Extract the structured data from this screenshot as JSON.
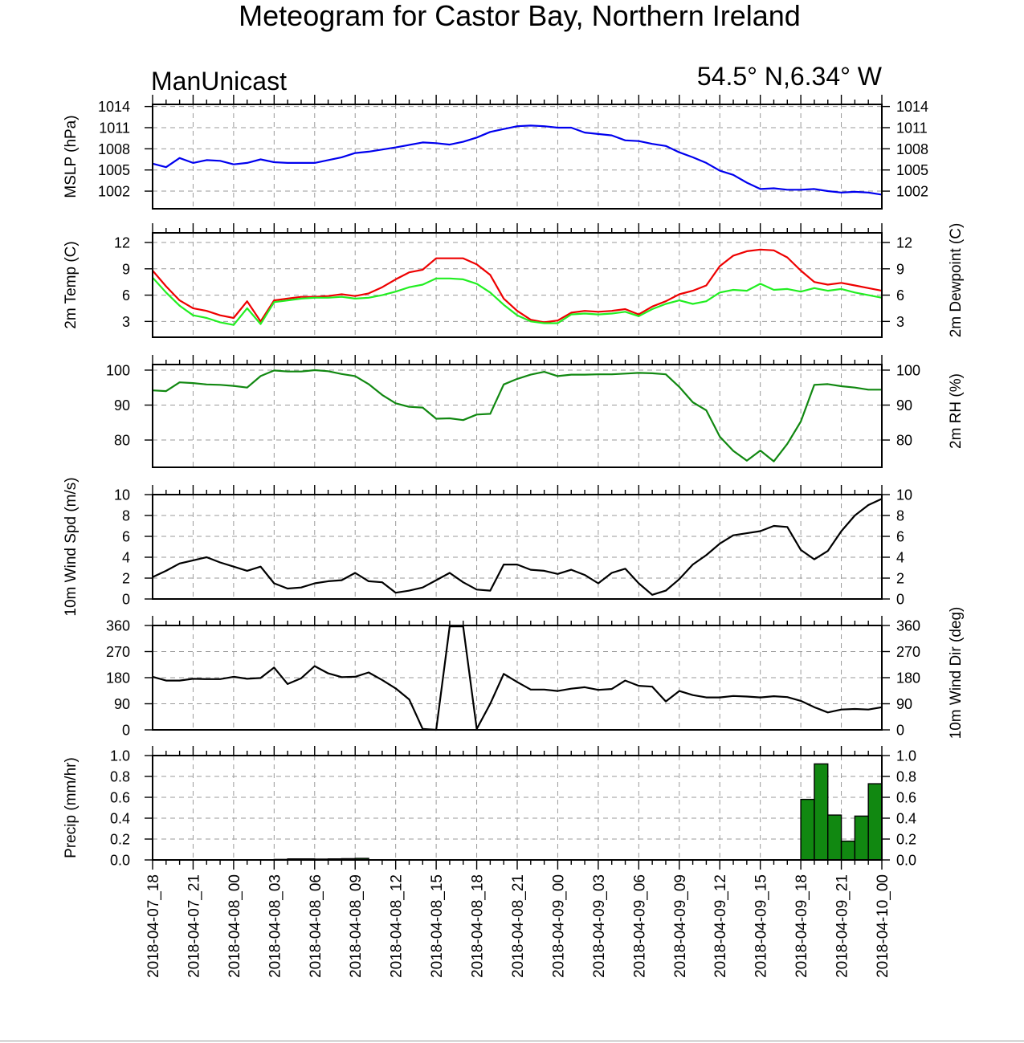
{
  "header": {
    "title": "Meteogram for Castor Bay, Northern Ireland",
    "model": "ManUnicast",
    "location": "54.5° N,6.34° W"
  },
  "time_labels": [
    "2018-04-07_18",
    "2018-04-07_21",
    "2018-04-08_00",
    "2018-04-08_03",
    "2018-04-08_06",
    "2018-04-08_09",
    "2018-04-08_12",
    "2018-04-08_15",
    "2018-04-08_18",
    "2018-04-08_21",
    "2018-04-09_00",
    "2018-04-09_03",
    "2018-04-09_06",
    "2018-04-09_09",
    "2018-04-09_12",
    "2018-04-09_15",
    "2018-04-09_18",
    "2018-04-09_21",
    "2018-04-10_00"
  ],
  "colors": {
    "mslp": "#0000ee",
    "temp": "#ee0000",
    "dewpoint": "#22ee22",
    "rh": "#118811",
    "wind": "#000000",
    "precip_fill": "#118811"
  },
  "chart_data": [
    {
      "name": "mslp",
      "type": "line",
      "ylabel_left": "MSLP (hPa)",
      "ylim": [
        999.5,
        1014.3
      ],
      "yticks": [
        1002,
        1005,
        1008,
        1011,
        1014
      ],
      "right_ticklabels": true,
      "series": [
        {
          "color_key": "mslp",
          "x": [
            0,
            1,
            2,
            3,
            4,
            5,
            6,
            7,
            8,
            9,
            10,
            12,
            14,
            15,
            16,
            18,
            20,
            21,
            22,
            23,
            24,
            25,
            26,
            27,
            28,
            29,
            30,
            31,
            32,
            33,
            34,
            35,
            36,
            37,
            38,
            39,
            40,
            41,
            42,
            43,
            44,
            45,
            46,
            47,
            48,
            49,
            50,
            51,
            52,
            53,
            54
          ],
          "values": [
            1005.9,
            1005.4,
            1006.7,
            1006.0,
            1006.4,
            1006.3,
            1005.8,
            1006.0,
            1006.5,
            1006.1,
            1006.0,
            1006.0,
            1006.8,
            1007.4,
            1007.6,
            1008.2,
            1008.9,
            1008.8,
            1008.6,
            1009.0,
            1009.6,
            1010.4,
            1010.8,
            1011.2,
            1011.3,
            1011.2,
            1011.0,
            1011.0,
            1010.3,
            1010.1,
            1009.9,
            1009.2,
            1009.1,
            1008.7,
            1008.4,
            1007.5,
            1006.8,
            1006.0,
            1004.9,
            1004.3,
            1003.2,
            1002.3,
            1002.4,
            1002.2,
            1002.2,
            1002.3,
            1002.0,
            1001.8,
            1001.9,
            1001.8,
            1001.5
          ]
        }
      ]
    },
    {
      "name": "temp",
      "type": "line",
      "ylabel_left": "2m Temp (C)",
      "ylabel_right": "2m Dewpoint (C)",
      "ylim": [
        1.2,
        13.1
      ],
      "yticks": [
        3,
        6,
        9,
        12
      ],
      "right_ticklabels": true,
      "series": [
        {
          "color_key": "temp",
          "x": [
            0,
            1,
            2,
            3,
            4,
            5,
            6,
            7,
            8,
            9,
            10,
            11,
            12,
            13,
            14,
            15,
            16,
            17,
            18,
            19,
            20,
            21,
            22,
            23,
            24,
            25,
            26,
            27,
            28,
            29,
            30,
            31,
            32,
            33,
            34,
            35,
            36,
            37,
            38,
            39,
            40,
            41,
            42,
            43,
            44,
            45,
            46,
            47,
            48,
            49,
            50,
            51,
            52,
            53,
            54
          ],
          "values": [
            8.8,
            7.0,
            5.4,
            4.5,
            4.2,
            3.7,
            3.4,
            5.3,
            3.0,
            5.4,
            5.6,
            5.8,
            5.8,
            5.9,
            6.1,
            5.9,
            6.2,
            6.9,
            7.8,
            8.6,
            8.9,
            10.2,
            10.2,
            10.2,
            9.5,
            8.3,
            5.6,
            4.2,
            3.2,
            2.9,
            3.1,
            4.0,
            4.2,
            4.1,
            4.2,
            4.4,
            3.8,
            4.7,
            5.3,
            6.1,
            6.5,
            7.1,
            9.3,
            10.5,
            11.0,
            11.2,
            11.1,
            10.3,
            8.8,
            7.5,
            7.2,
            7.4,
            7.1,
            6.8,
            6.5
          ]
        },
        {
          "color_key": "dewpoint",
          "x": [
            0,
            1,
            2,
            3,
            4,
            5,
            6,
            7,
            8,
            9,
            10,
            11,
            12,
            13,
            14,
            15,
            16,
            17,
            18,
            19,
            20,
            21,
            22,
            23,
            24,
            25,
            26,
            27,
            28,
            29,
            30,
            31,
            32,
            33,
            34,
            35,
            36,
            37,
            38,
            39,
            40,
            41,
            42,
            43,
            44,
            45,
            46,
            47,
            48,
            49,
            50,
            51,
            52,
            53,
            54
          ],
          "values": [
            8.0,
            6.3,
            4.8,
            3.7,
            3.4,
            2.9,
            2.6,
            4.5,
            2.7,
            5.2,
            5.4,
            5.6,
            5.7,
            5.7,
            5.8,
            5.6,
            5.7,
            6.0,
            6.4,
            6.9,
            7.2,
            7.9,
            7.9,
            7.8,
            7.3,
            6.3,
            4.9,
            3.7,
            3.0,
            2.8,
            2.8,
            3.8,
            3.9,
            3.8,
            3.9,
            4.1,
            3.6,
            4.4,
            5.0,
            5.4,
            5.0,
            5.3,
            6.3,
            6.6,
            6.5,
            7.3,
            6.6,
            6.7,
            6.4,
            6.8,
            6.5,
            6.7,
            6.3,
            6.0,
            5.7
          ]
        }
      ]
    },
    {
      "name": "rh",
      "type": "line",
      "ylabel_left": "",
      "ylabel_right": "2m RH (%)",
      "ylim": [
        72.2,
        101.6
      ],
      "yticks": [
        80,
        90,
        100
      ],
      "right_ticklabels": true,
      "series": [
        {
          "color_key": "rh",
          "x": [
            0,
            1,
            2,
            3,
            4,
            5,
            6,
            7,
            8,
            9,
            10,
            11,
            12,
            13,
            14,
            15,
            16,
            17,
            18,
            19,
            20,
            21,
            22,
            23,
            24,
            25,
            26,
            27,
            28,
            29,
            30,
            31,
            32,
            33,
            34,
            35,
            36,
            37,
            38,
            39,
            40,
            41,
            42,
            43,
            44,
            45,
            46,
            47,
            48,
            49,
            50,
            51,
            52,
            53,
            54
          ],
          "values": [
            94.2,
            94.0,
            96.5,
            96.3,
            95.9,
            95.8,
            95.5,
            95.0,
            98.3,
            99.9,
            99.6,
            99.6,
            100.0,
            99.7,
            98.9,
            98.3,
            96.0,
            92.9,
            90.5,
            89.5,
            89.3,
            86.1,
            86.2,
            85.7,
            87.3,
            87.5,
            95.9,
            97.5,
            98.7,
            99.5,
            98.3,
            98.7,
            98.7,
            98.8,
            98.8,
            99.0,
            99.2,
            99.1,
            98.8,
            95.2,
            90.8,
            88.5,
            81.0,
            76.9,
            74.1,
            77.0,
            73.9,
            78.9,
            85.3,
            95.8,
            96.0,
            95.4,
            95.0,
            94.4,
            94.4
          ]
        }
      ]
    },
    {
      "name": "wind_speed",
      "type": "line",
      "ylabel_left": "10m Wind Spd (m/s)",
      "ylim": [
        0,
        10
      ],
      "yticks": [
        0,
        2,
        4,
        6,
        8,
        10
      ],
      "right_ticklabels": true,
      "series": [
        {
          "color_key": "wind",
          "x": [
            0,
            1,
            2,
            3,
            4,
            5,
            6,
            7,
            8,
            9,
            10,
            11,
            12,
            13,
            14,
            15,
            16,
            17,
            18,
            19,
            20,
            21,
            22,
            23,
            24,
            25,
            26,
            27,
            28,
            29,
            30,
            31,
            32,
            33,
            34,
            35,
            36,
            37,
            38,
            39,
            40,
            41,
            42,
            43,
            44,
            45,
            46,
            47,
            48,
            49,
            50,
            51,
            52,
            53,
            54
          ],
          "values": [
            2.1,
            2.7,
            3.4,
            3.7,
            4.0,
            3.5,
            3.1,
            2.7,
            3.1,
            1.5,
            1.0,
            1.1,
            1.5,
            1.7,
            1.8,
            2.5,
            1.7,
            1.6,
            0.6,
            0.8,
            1.1,
            1.8,
            2.5,
            1.6,
            0.9,
            0.8,
            3.3,
            3.3,
            2.8,
            2.7,
            2.4,
            2.8,
            2.3,
            1.5,
            2.5,
            2.9,
            1.5,
            0.4,
            0.8,
            1.9,
            3.3,
            4.2,
            5.3,
            6.1,
            6.3,
            6.5,
            7.0,
            6.9,
            4.7,
            3.8,
            4.6,
            6.5,
            8.0,
            9.0,
            9.6
          ]
        }
      ]
    },
    {
      "name": "wind_dir",
      "type": "line",
      "ylabel_left": "",
      "ylabel_right": "10m Wind Dir (deg)",
      "ylim": [
        0,
        360
      ],
      "yticks": [
        0,
        90,
        180,
        270,
        360
      ],
      "right_ticklabels": true,
      "series": [
        {
          "color_key": "wind",
          "x": [
            0,
            1,
            2,
            3,
            4,
            5,
            6,
            7,
            8,
            9,
            10,
            11,
            12,
            13,
            14,
            15,
            16,
            17,
            18,
            19,
            20,
            21,
            22,
            23,
            24,
            25,
            26,
            27,
            28,
            29,
            30,
            31,
            32,
            33,
            34,
            35,
            36,
            37,
            38,
            39,
            40,
            41,
            42,
            43,
            44,
            45,
            46,
            47,
            48,
            49,
            50,
            51,
            52,
            53,
            54
          ],
          "values": [
            183,
            170,
            170,
            176,
            175,
            175,
            183,
            176,
            179,
            215,
            158,
            178,
            220,
            195,
            182,
            183,
            198,
            172,
            143,
            105,
            3,
            0,
            357,
            357,
            3,
            90,
            193,
            165,
            139,
            139,
            134,
            142,
            147,
            138,
            141,
            170,
            152,
            149,
            98,
            134,
            120,
            112,
            112,
            117,
            115,
            112,
            116,
            113,
            100,
            78,
            60,
            70,
            72,
            70,
            78
          ]
        }
      ]
    },
    {
      "name": "precip",
      "type": "bar",
      "ylabel_left": "Precip (mm/hr)",
      "ylim": [
        0,
        1.0
      ],
      "yticks": [
        0.0,
        0.2,
        0.4,
        0.6,
        0.8,
        1.0
      ],
      "right_ticklabels": true,
      "series": [
        {
          "color_key": "precip_fill",
          "x": [
            9,
            10,
            11,
            12,
            13,
            14,
            15,
            48,
            49,
            50,
            51,
            52,
            53
          ],
          "values": [
            0.005,
            0.01,
            0.01,
            0.008,
            0.01,
            0.012,
            0.015,
            0.58,
            0.92,
            0.43,
            0.18,
            0.42,
            0.73
          ]
        }
      ]
    }
  ],
  "x_axis": {
    "step_hours": 1,
    "max_index": 54,
    "label_every": 3
  }
}
